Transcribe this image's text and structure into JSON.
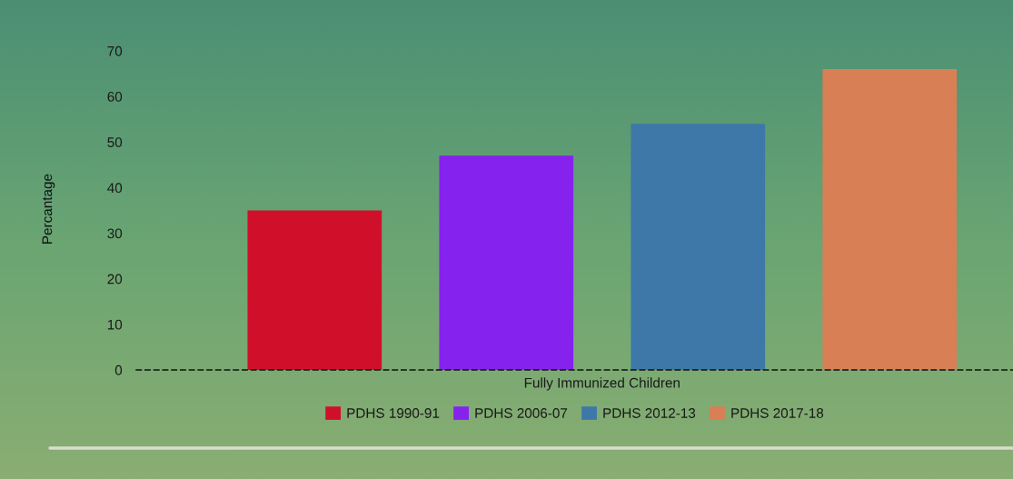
{
  "chart_data": {
    "type": "bar",
    "categories": [
      "Fully Immunized Children"
    ],
    "series": [
      {
        "name": "PDHS 1990-91",
        "color": "#d0102a",
        "values": [
          35
        ]
      },
      {
        "name": "PDHS 2006-07",
        "color": "#8522ee",
        "values": [
          47
        ]
      },
      {
        "name": "PDHS 2012-13",
        "color": "#3d78a8",
        "values": [
          54
        ]
      },
      {
        "name": "PDHS 2017-18",
        "color": "#d87f56",
        "values": [
          66
        ]
      }
    ],
    "ylabel": "Percantage",
    "ylim": [
      0,
      70
    ],
    "yticks": [
      0,
      10,
      20,
      30,
      40,
      50,
      60,
      70
    ],
    "grid": false,
    "legend": "bottom"
  }
}
